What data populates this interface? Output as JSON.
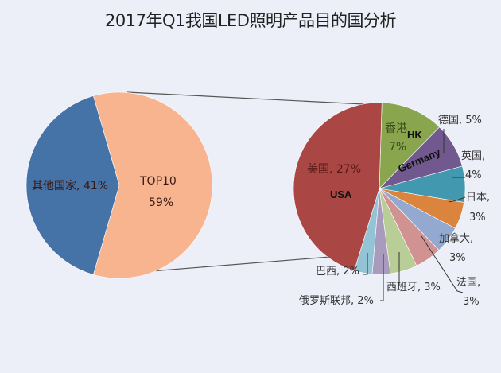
{
  "title": "2017年Q1我国LED照明产品目的国分析",
  "colors": {
    "background": "#eceef8",
    "others": "#4572a7",
    "top10": "#f8b48f",
    "usa": "#aa4643",
    "hk": "#89a54e",
    "germany": "#71588f",
    "uk": "#4198af",
    "japan": "#db843d",
    "canada": "#93a9cf",
    "france": "#d19392",
    "spain": "#b9cd96",
    "russia": "#a99bbd",
    "brazil": "#92c4d5"
  },
  "chart_data": [
    {
      "type": "pie",
      "title": "2017年Q1我国LED照明产品目的国分析",
      "name": "overall",
      "categories": [
        "其他国家",
        "TOP10"
      ],
      "values": [
        41,
        59
      ],
      "labels": [
        "其他国家, 41%",
        "TOP10 59%"
      ]
    },
    {
      "type": "pie",
      "name": "top10-breakdown",
      "categories": [
        "美国",
        "香港",
        "德国",
        "英国",
        "日本",
        "加拿大",
        "法国",
        "西班牙",
        "俄罗斯联邦",
        "巴西"
      ],
      "english_annotations": {
        "美国": "USA",
        "香港": "HK",
        "德国": "Germany"
      },
      "values": [
        27,
        7,
        5,
        4,
        3,
        3,
        3,
        3,
        2,
        2
      ],
      "unit": "%"
    }
  ],
  "labels": {
    "others": "其他国家, 41%",
    "top10_name": "TOP10",
    "top10_pct": "59%",
    "usa": "美国, 27%",
    "usa_en": "USA",
    "hk_name": "香港",
    "hk_pct": "7%",
    "hk_en": "HK",
    "germany": "德国, 5%",
    "germany_en": "Germany",
    "uk_name": "英国,",
    "uk_pct": "4%",
    "japan_name": "日本,",
    "japan_pct": "3%",
    "canada_name": "加拿大,",
    "canada_pct": "3%",
    "france_name": "法国,",
    "france_pct": "3%",
    "spain": "西班牙, 3%",
    "russia": "俄罗斯联邦, 2%",
    "brazil": "巴西, 2%"
  }
}
